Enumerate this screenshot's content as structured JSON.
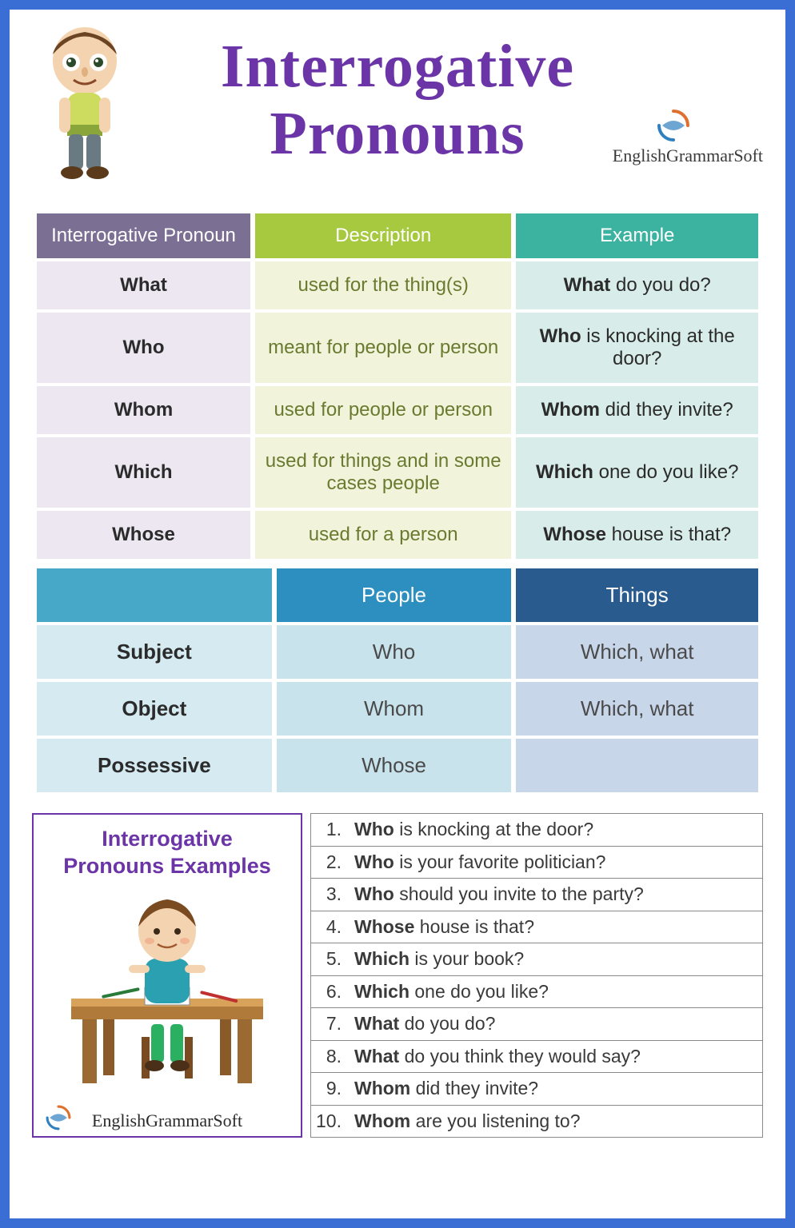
{
  "title_line1": "Interrogative",
  "title_line2": "Pronouns",
  "brand": "EnglishGrammarSoft",
  "colors": {
    "frame": "#3b6ed5",
    "title": "#6b35a7",
    "table1_headers": [
      "#7c6f94",
      "#a7c93f",
      "#3bb3a0"
    ],
    "table1_cells": [
      "#ece7f0",
      "#f1f4da",
      "#d8ede9"
    ],
    "table2_headers": [
      "#47a9c7",
      "#2c8fbf",
      "#2a5b8e"
    ],
    "table2_cells": [
      "#d5eaf1",
      "#c8e3ec",
      "#c8d6ea"
    ]
  },
  "table1": {
    "headers": [
      "Interrogative Pronoun",
      "Description",
      "Example"
    ],
    "rows": [
      {
        "pronoun": "What",
        "desc": "used for the thing(s)",
        "example_bold": "What",
        "example_rest": " do you do?"
      },
      {
        "pronoun": "Who",
        "desc": "meant for people or person",
        "example_bold": "Who",
        "example_rest": " is knocking at the door?"
      },
      {
        "pronoun": "Whom",
        "desc": "used for people or person",
        "example_bold": "Whom",
        "example_rest": " did they invite?"
      },
      {
        "pronoun": "Which",
        "desc": "used for things and in some cases people",
        "example_bold": "Which",
        "example_rest": " one do you like?"
      },
      {
        "pronoun": "Whose",
        "desc": "used for a person",
        "example_bold": "Whose",
        "example_rest": " house is that?"
      }
    ]
  },
  "table2": {
    "headers": [
      "",
      "People",
      "Things"
    ],
    "rows": [
      {
        "label": "Subject",
        "people": "Who",
        "things": "Which, what"
      },
      {
        "label": "Object",
        "people": "Whom",
        "things": "Which, what"
      },
      {
        "label": "Possessive",
        "people": "Whose",
        "things": ""
      }
    ]
  },
  "examples_card": {
    "title_line1": "Interrogative",
    "title_line2": "Pronouns Examples"
  },
  "examples": [
    {
      "n": "1.",
      "bold": "Who",
      "rest": " is knocking at the door?"
    },
    {
      "n": "2.",
      "bold": "Who",
      "rest": " is your favorite politician?"
    },
    {
      "n": "3.",
      "bold": "Who",
      "rest": " should you invite to the party?"
    },
    {
      "n": "4.",
      "bold": "Whose",
      "rest": " house is that?"
    },
    {
      "n": "5.",
      "bold": "Which",
      "rest": " is your book?"
    },
    {
      "n": "6.",
      "bold": "Which",
      "rest": " one do you like?"
    },
    {
      "n": "7.",
      "bold": "What",
      "rest": " do you do?"
    },
    {
      "n": "8.",
      "bold": "What",
      "rest": " do you think they would say?"
    },
    {
      "n": "9.",
      "bold": "Whom",
      "rest": " did they invite?"
    },
    {
      "n": "10.",
      "bold": "Whom",
      "rest": " are you listening to?"
    }
  ]
}
